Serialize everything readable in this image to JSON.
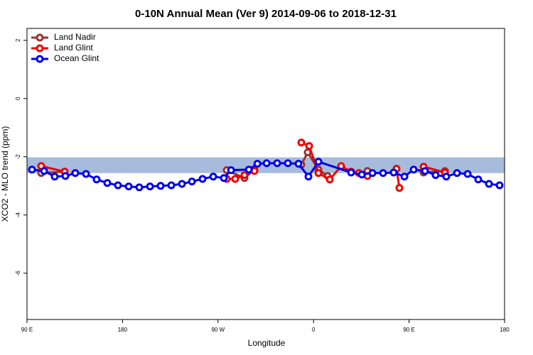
{
  "chart_data": {
    "type": "line",
    "title": "0-10N Annual Mean (Ver 9)   2014-09-06 to 2018-12-31",
    "x_label": "Longitude",
    "y_label": "XCO2 - MLO trend (ppm)",
    "xlim": [
      90,
      540
    ],
    "xticks": [
      {
        "value": 90,
        "label": "90 E"
      },
      180,
      {
        "value": 270,
        "label": "90 W"
      },
      {
        "value": 360,
        "label": "0"
      },
      {
        "value": 450,
        "label": "90 E"
      },
      {
        "value": 540,
        "label": "180"
      }
    ],
    "ylim": [
      -7.59,
      2.41
    ],
    "yticks": [
      2,
      0,
      -2,
      -4,
      -6
    ],
    "band": [
      -2.56,
      -2.02
    ],
    "band_color": "#a7bcdc",
    "legend": "top-left",
    "series": [
      {
        "name": "Land Nadir",
        "color": "#993333",
        "x": [
          103.4,
          125.5,
          null,
          278.2,
          294.9,
          304.3,
          null,
          348.5,
          354.5,
          364.6,
          373.3,
          null,
          410.8,
          null,
          463.7,
          483.8
        ],
        "values": [
          -2.56,
          -2.51,
          null,
          -2.46,
          -2.73,
          -2.44,
          null,
          -2.27,
          -1.85,
          -2.44,
          -2.66,
          null,
          -2.49,
          null,
          -2.54,
          -2.49
        ]
      },
      {
        "name": "Land Glint",
        "color": "#ee0000",
        "x": [
          103.4,
          125.5,
          null,
          278.2,
          286.2,
          294.9,
          304.3,
          null,
          348.5,
          355.9,
          364.6,
          375.3,
          386.0,
          395.4,
          402.7,
          410.8,
          null,
          438.2,
          440.9,
          null,
          463.7,
          483.8
        ],
        "values": [
          -2.32,
          -2.51,
          null,
          -2.76,
          -2.76,
          -2.63,
          -2.49,
          null,
          -1.51,
          -1.63,
          -2.56,
          -2.78,
          -2.32,
          -2.51,
          -2.56,
          -2.66,
          null,
          -2.41,
          -3.07,
          null,
          -2.34,
          -2.54
        ]
      },
      {
        "name": "Ocean Glint",
        "color": "#0000ee",
        "x": [
          94.7,
          106.1,
          116.1,
          126.2,
          135.5,
          145.6,
          155.6,
          165.7,
          175.7,
          185.8,
          195.8,
          205.9,
          215.9,
          226.0,
          236.0,
          245.4,
          255.4,
          265.5,
          275.5,
          282.3,
          299.0,
          307.1,
          315.8,
          325.7,
          335.8,
          345.8,
          355.2,
          364.6,
          395.4,
          405.5,
          415.5,
          425.5,
          435.5,
          445.6,
          454.3,
          465.0,
          475.0,
          485.1,
          495.2,
          505.2,
          515.2,
          525.3,
          535.3
        ],
        "values": [
          -2.44,
          -2.49,
          -2.68,
          -2.66,
          -2.56,
          -2.59,
          -2.78,
          -2.9,
          -2.98,
          -3.02,
          -3.05,
          -3.02,
          -3.0,
          -2.98,
          -2.93,
          -2.85,
          -2.76,
          -2.68,
          -2.73,
          -2.46,
          -2.44,
          -2.24,
          -2.22,
          -2.22,
          -2.22,
          -2.24,
          -2.68,
          -2.17,
          -2.54,
          -2.61,
          -2.56,
          -2.56,
          -2.54,
          -2.68,
          -2.44,
          -2.49,
          -2.63,
          -2.68,
          -2.56,
          -2.59,
          -2.78,
          -2.93,
          -2.98
        ]
      }
    ]
  }
}
